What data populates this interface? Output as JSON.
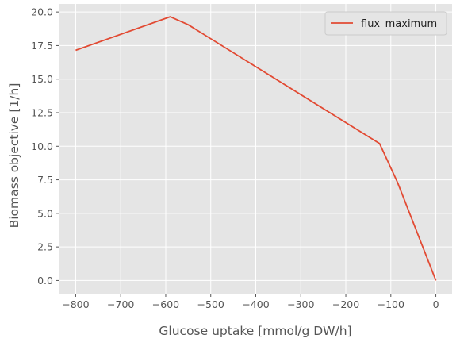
{
  "chart_data": {
    "type": "line",
    "xlabel": "Glucose uptake [mmol/g DW/h]",
    "ylabel": "Biomass objective [1/h]",
    "xlim": [
      -836,
      36
    ],
    "ylim": [
      -0.98,
      20.6
    ],
    "xticks": [
      -800,
      -700,
      -600,
      -500,
      -400,
      -300,
      -200,
      -100,
      0
    ],
    "yticks": [
      0.0,
      2.5,
      5.0,
      7.5,
      10.0,
      12.5,
      15.0,
      17.5,
      20.0
    ],
    "xtick_labels": [
      "−800",
      "−700",
      "−600",
      "−500",
      "−400",
      "−300",
      "−200",
      "−100",
      "0"
    ],
    "ytick_labels": [
      "0.0",
      "2.5",
      "5.0",
      "7.5",
      "10.0",
      "12.5",
      "15.0",
      "17.5",
      "20.0"
    ],
    "grid": true,
    "legend_position": "upper right",
    "series": [
      {
        "name": "flux_maximum",
        "color": "#e24a33",
        "x": [
          -800,
          -590,
          -550,
          -125,
          -85,
          0
        ],
        "y": [
          17.15,
          19.65,
          19.05,
          10.2,
          7.3,
          0.0
        ]
      }
    ]
  }
}
